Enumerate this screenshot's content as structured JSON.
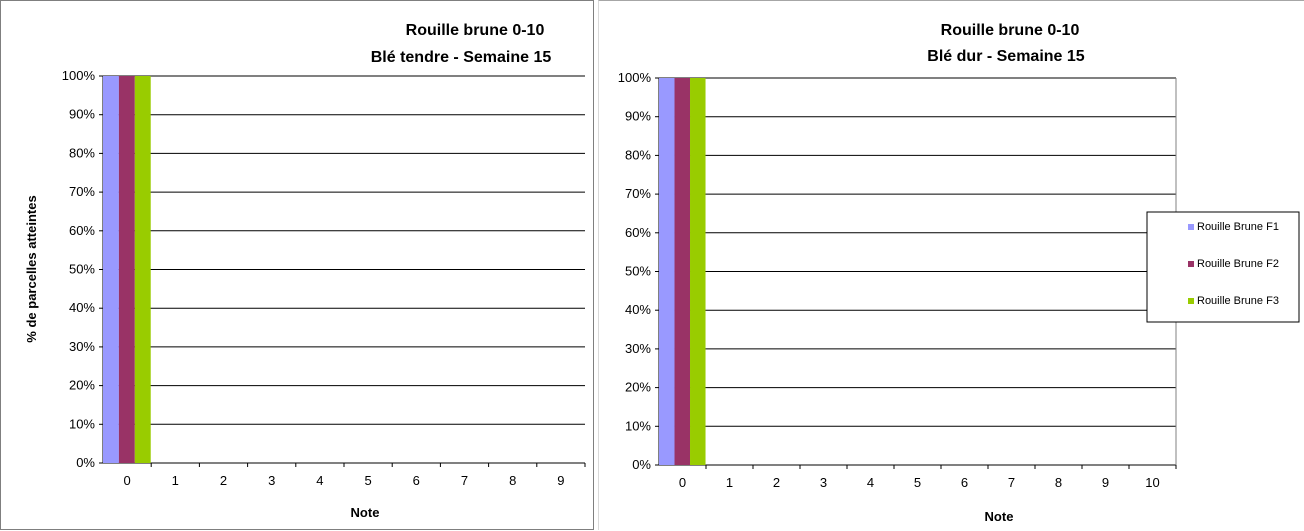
{
  "chart_data": [
    {
      "type": "bar",
      "title": "Rouille brune 0-10",
      "subtitle": "Blé tendre - Semaine 15",
      "xlabel": "Note",
      "ylabel": "% de parcelles atteintes",
      "ylim": [
        0,
        100
      ],
      "yticks": [
        "0%",
        "10%",
        "20%",
        "30%",
        "40%",
        "50%",
        "60%",
        "70%",
        "80%",
        "90%",
        "100%"
      ],
      "categories": [
        "0",
        "1",
        "2",
        "3",
        "4",
        "5",
        "6",
        "7",
        "8",
        "9"
      ],
      "series": [
        {
          "values": [
            100,
            0,
            0,
            0,
            0,
            0,
            0,
            0,
            0,
            0
          ],
          "color": "#9999ff"
        },
        {
          "values": [
            100,
            0,
            0,
            0,
            0,
            0,
            0,
            0,
            0,
            0
          ],
          "color": "#993366"
        },
        {
          "values": [
            100,
            0,
            0,
            0,
            0,
            0,
            0,
            0,
            0,
            0
          ],
          "color": "#99cc00"
        }
      ],
      "grid": true,
      "legend": "none"
    },
    {
      "type": "bar",
      "title": "Rouille brune 0-10",
      "subtitle": "Blé dur - Semaine 15",
      "xlabel": "Note",
      "ylabel": "",
      "ylim": [
        0,
        100
      ],
      "yticks": [
        "0%",
        "10%",
        "20%",
        "30%",
        "40%",
        "50%",
        "60%",
        "70%",
        "80%",
        "90%",
        "100%"
      ],
      "categories": [
        "0",
        "1",
        "2",
        "3",
        "4",
        "5",
        "6",
        "7",
        "8",
        "9",
        "10"
      ],
      "series": [
        {
          "name": "Rouille Brune F1",
          "values": [
            100,
            0,
            0,
            0,
            0,
            0,
            0,
            0,
            0,
            0,
            0
          ],
          "color": "#9999ff"
        },
        {
          "name": "Rouille Brune F2",
          "values": [
            100,
            0,
            0,
            0,
            0,
            0,
            0,
            0,
            0,
            0,
            0
          ],
          "color": "#993366"
        },
        {
          "name": "Rouille Brune F3",
          "values": [
            100,
            0,
            0,
            0,
            0,
            0,
            0,
            0,
            0,
            0,
            0
          ],
          "color": "#99cc00"
        }
      ],
      "grid": true,
      "legend": "right"
    }
  ]
}
